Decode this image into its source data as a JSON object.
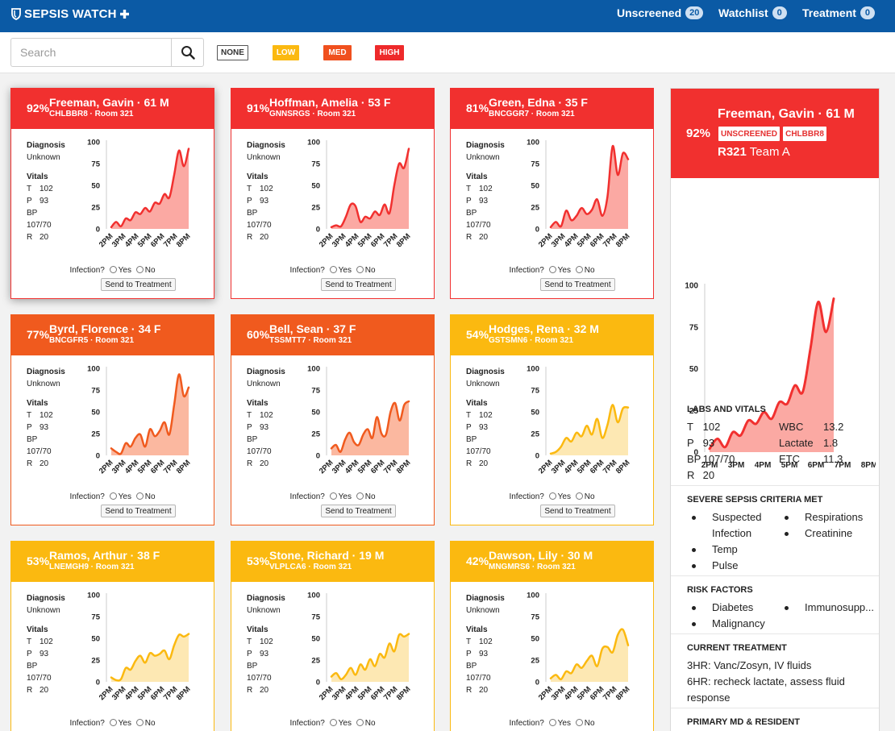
{
  "app": {
    "brand": "SEPSIS WATCH",
    "nav": [
      {
        "label": "Unscreened",
        "count": "20"
      },
      {
        "label": "Watchlist",
        "count": "0"
      },
      {
        "label": "Treatment",
        "count": "0"
      }
    ]
  },
  "search": {
    "placeholder": "Search",
    "value": ""
  },
  "filters": [
    {
      "label": "NONE",
      "color": "#ffffff",
      "text_color": "#333333"
    },
    {
      "label": "LOW",
      "color": "#fbb910",
      "text_color": "#ffffff"
    },
    {
      "label": "MED",
      "color": "#f0501e",
      "text_color": "#ffffff"
    },
    {
      "label": "HIGH",
      "color": "#ee2a2b",
      "text_color": "#ffffff"
    }
  ],
  "colors": {
    "high": "#f1302f",
    "high_fill": "#fba9a3",
    "med": "#f05a1e",
    "med_fill": "#fbb8a0",
    "low": "#fbb910",
    "low_fill": "#fde8b3"
  },
  "card_labels": {
    "diagnosis": "Diagnosis",
    "diagnosis_value": "Unknown",
    "vitals": "Vitals",
    "t": "T",
    "t_value": "102",
    "p": "P",
    "p_value": "93",
    "bp": "BP",
    "bp_value": "107/70",
    "r": "R",
    "r_value": "20",
    "infection": "Infection?",
    "yes": "Yes",
    "no": "No",
    "send": "Send to Treatment"
  },
  "chart_axes": {
    "y_ticks": [
      "0",
      "25",
      "50",
      "75",
      "100"
    ],
    "x_ticks": [
      "2PM",
      "3PM",
      "4PM",
      "5PM",
      "6PM",
      "7PM",
      "8PM"
    ]
  },
  "patients": [
    {
      "pct": "92%",
      "name": "Freeman, Gavin · 61 M",
      "code": "CHLBBR8",
      "room": "Room 321",
      "level": "high",
      "scores": [
        2,
        8,
        3,
        12,
        10,
        19,
        17,
        24,
        20,
        30,
        29,
        40,
        36,
        62,
        90,
        72,
        92
      ]
    },
    {
      "pct": "91%",
      "name": "Hoffman, Amelia · 53 F",
      "code": "GNNSRGS",
      "room": "Room 321",
      "level": "high",
      "scores": [
        2,
        4,
        3,
        14,
        28,
        26,
        8,
        14,
        12,
        20,
        16,
        28,
        18,
        50,
        75,
        70,
        92
      ]
    },
    {
      "pct": "81%",
      "name": "Green, Edna · 35 F",
      "code": "BNCGGR7",
      "room": "Room 321",
      "level": "high",
      "scores": [
        2,
        8,
        3,
        21,
        10,
        15,
        24,
        17,
        22,
        34,
        15,
        37,
        95,
        62,
        87,
        80
      ]
    },
    {
      "pct": "77%",
      "name": "Byrd, Florence · 34 F",
      "code": "BNCGFR5",
      "room": "Room 321",
      "level": "med",
      "scores": [
        8,
        4,
        2,
        14,
        10,
        20,
        24,
        10,
        30,
        22,
        28,
        38,
        24,
        58,
        93,
        68,
        78
      ]
    },
    {
      "pct": "60%",
      "name": "Bell, Sean · 37 F",
      "code": "TSSMTT7",
      "room": "Room 321",
      "level": "med",
      "scores": [
        8,
        12,
        4,
        18,
        26,
        15,
        12,
        24,
        30,
        20,
        44,
        25,
        24,
        50,
        60,
        40,
        58,
        62
      ]
    },
    {
      "pct": "54%",
      "name": "Hodges, Rena · 32 M",
      "code": "GSTSMN6",
      "room": "Room 321",
      "level": "low",
      "scores": [
        2,
        4,
        10,
        20,
        16,
        26,
        22,
        34,
        24,
        42,
        20,
        35,
        58,
        38,
        54,
        55
      ]
    },
    {
      "pct": "53%",
      "name": "Ramos, Arthur · 38 F",
      "code": "LNEMGH9",
      "room": "Room 321",
      "level": "low",
      "scores": [
        5,
        2,
        3,
        16,
        14,
        24,
        30,
        22,
        33,
        30,
        32,
        36,
        26,
        42,
        54,
        52,
        55
      ]
    },
    {
      "pct": "53%",
      "name": "Stone, Richard · 19 M",
      "code": "VLPLCA6",
      "room": "Room 321",
      "level": "low",
      "scores": [
        6,
        10,
        3,
        8,
        16,
        8,
        20,
        14,
        26,
        18,
        32,
        28,
        44,
        35,
        54,
        52,
        55
      ]
    },
    {
      "pct": "42%",
      "name": "Dawson, Lily · 30 M",
      "code": "MNGMRS6",
      "room": "Room 321",
      "level": "low",
      "scores": [
        4,
        8,
        3,
        12,
        10,
        20,
        16,
        24,
        30,
        18,
        38,
        40,
        34,
        54,
        60,
        42
      ]
    }
  ],
  "detail": {
    "name": "Freeman, Gavin · 61 M",
    "pct": "92%",
    "badge_status": "UNSCREENED",
    "badge_code": "CHLBBR8",
    "room": "R321",
    "team": "Team A",
    "scores": [
      2,
      8,
      3,
      12,
      10,
      19,
      17,
      24,
      20,
      30,
      29,
      40,
      36,
      62,
      90,
      72,
      92
    ],
    "labs_title": "LABS AND VITALS",
    "vitals": [
      {
        "k": "T",
        "v": "102"
      },
      {
        "k": "P",
        "v": "93"
      },
      {
        "k": "BP",
        "v": "107/70"
      },
      {
        "k": "R",
        "v": "20"
      }
    ],
    "labs": [
      {
        "k": "WBC",
        "v": "13.2"
      },
      {
        "k": "Lactate",
        "v": "1.8"
      },
      {
        "k": "ETC",
        "v": "11.3"
      }
    ],
    "criteria_title": "SEVERE SEPSIS CRITERIA MET",
    "criteria_left": [
      "Suspected Infection",
      "Temp",
      "Pulse"
    ],
    "criteria_right": [
      "Respirations",
      "Creatinine"
    ],
    "risk_title": "RISK FACTORS",
    "risk_left": [
      "Diabetes",
      "Malignancy"
    ],
    "risk_right": [
      "Immunosupp..."
    ],
    "treatment_title": "CURRENT TREATMENT",
    "treatment_lines": [
      "3HR: Vanc/Zosyn, IV fluids",
      "6HR: recheck lactate, assess fluid response"
    ],
    "md_title": "PRIMARY MD & RESIDENT"
  }
}
